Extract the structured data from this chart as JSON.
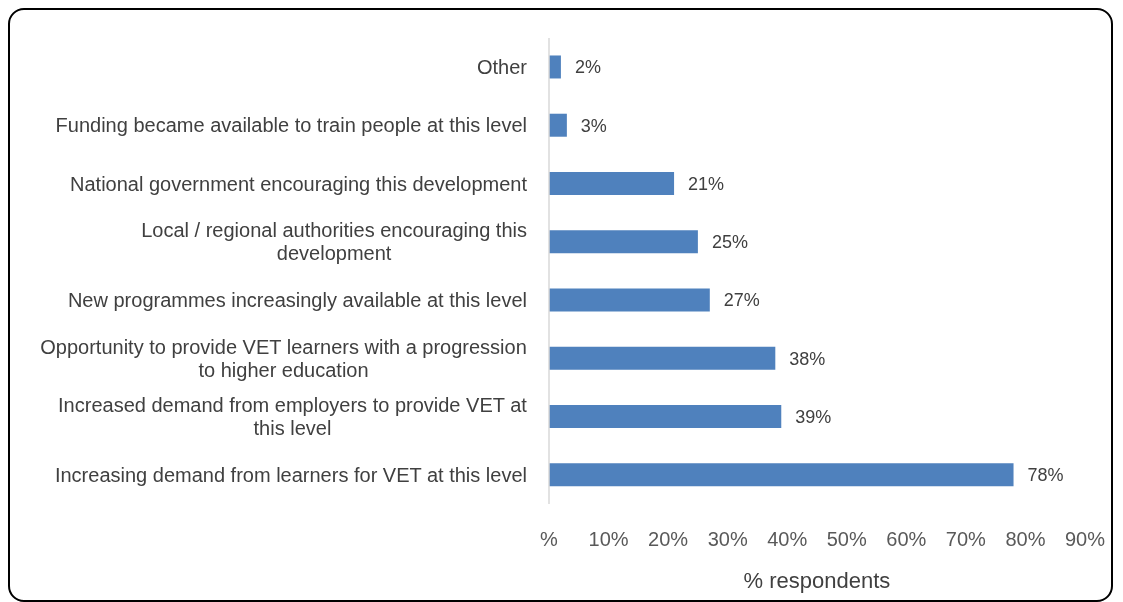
{
  "chart_data": {
    "type": "bar",
    "orientation": "horizontal",
    "categories": [
      "Other",
      "Funding became available to train people at this level",
      "National government encouraging this development",
      "Local / regional authorities encouraging this development",
      "New programmes increasingly available at this level",
      "Opportunity to provide VET learners with a progression to higher education",
      "Increased demand from employers to provide VET at this level",
      "Increasing demand from learners for VET at this level"
    ],
    "values": [
      2,
      3,
      21,
      25,
      27,
      38,
      39,
      78
    ],
    "value_labels": [
      "2%",
      "3%",
      "21%",
      "25%",
      "27%",
      "38%",
      "39%",
      "78%"
    ],
    "color": "#4f81bd",
    "xlabel": "% respondents",
    "xlim": [
      0,
      90
    ],
    "xticks": [
      {
        "value": 0,
        "label": "%"
      },
      {
        "value": 10,
        "label": "10%"
      },
      {
        "value": 20,
        "label": "20%"
      },
      {
        "value": 30,
        "label": "30%"
      },
      {
        "value": 40,
        "label": "40%"
      },
      {
        "value": 50,
        "label": "50%"
      },
      {
        "value": 60,
        "label": "60%"
      },
      {
        "value": 70,
        "label": "70%"
      },
      {
        "value": 80,
        "label": "80%"
      },
      {
        "value": 90,
        "label": "90%"
      }
    ],
    "grid": false,
    "legend": false
  }
}
